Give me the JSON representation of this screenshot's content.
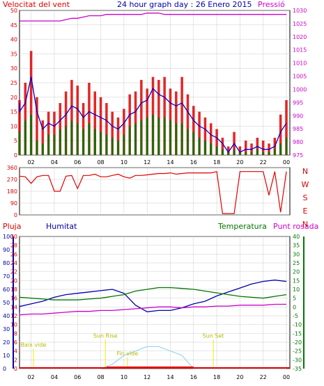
{
  "title": "24 hour graph day : 26 Enero 2015",
  "colors": {
    "wind": "#e00000",
    "gust": "#e00000",
    "avg_wind": "#0000cc",
    "temp_green": "#007700",
    "pressure": "#cc00cc",
    "humidity": "#0000aa",
    "rain": "#dd0000",
    "dew": "#cc00cc",
    "sun": "#eeee00",
    "uv": "#88ccee",
    "grid": "#cccccc",
    "frame": "#000000",
    "direction": "#e00000"
  },
  "chart_data": [
    {
      "type": "line",
      "name": "wind-pressure",
      "left_label": "Velocitat del vent",
      "right_label": "Pressió",
      "left_axis": {
        "ylim": [
          0,
          50
        ],
        "ticks": [
          "0",
          "5",
          "10",
          "15",
          "20",
          "25",
          "30",
          "35",
          "40",
          "45",
          "50"
        ]
      },
      "right_axis": {
        "ylim": [
          975,
          1030
        ],
        "ticks": [
          "975",
          "980",
          "985",
          "990",
          "995",
          "1000",
          "1005",
          "1010",
          "1015",
          "1020",
          "1025",
          "1030"
        ]
      },
      "x_ticks": [
        "02",
        "04",
        "06",
        "08",
        "10",
        "12",
        "14",
        "16",
        "18",
        "20",
        "22",
        "00"
      ],
      "x_hours": [
        0,
        0.5,
        1,
        1.5,
        2,
        2.5,
        3,
        3.5,
        4,
        4.5,
        5,
        5.5,
        6,
        6.5,
        7,
        7.5,
        8,
        8.5,
        9,
        9.5,
        10,
        10.5,
        11,
        11.5,
        12,
        12.5,
        13,
        13.5,
        14,
        14.5,
        15,
        15.5,
        16,
        16.5,
        17,
        17.5,
        18,
        18.5,
        19,
        19.5,
        20,
        20.5,
        21,
        21.5,
        22,
        22.5,
        23,
        23.5,
        24
      ],
      "series": [
        {
          "name": "gust",
          "values": [
            22,
            28,
            19,
            25,
            36,
            20,
            12,
            15,
            15,
            18,
            22,
            26,
            24,
            18,
            25,
            22,
            20,
            18,
            15,
            13,
            16,
            21,
            22,
            26,
            23,
            27,
            26,
            27,
            23,
            22,
            27,
            21,
            17,
            15,
            13,
            11,
            9,
            6,
            3,
            8,
            3,
            5,
            4,
            6,
            5,
            4,
            6,
            14,
            19
          ]
        },
        {
          "name": "wind",
          "values": [
            17,
            20,
            16,
            20,
            28,
            16,
            10,
            12,
            11,
            13,
            16,
            19,
            17,
            14,
            17,
            16,
            15,
            13,
            11,
            10,
            12,
            15,
            16,
            19,
            20,
            25,
            23,
            22,
            19,
            18,
            19,
            16,
            13,
            11,
            10,
            8,
            7,
            4,
            2,
            5,
            1,
            3,
            3,
            4,
            3,
            3,
            4,
            10,
            12
          ]
        },
        {
          "name": "avg_wind",
          "values": [
            16,
            18,
            15,
            18,
            27,
            15,
            9,
            11,
            10,
            12,
            14,
            17,
            16,
            13,
            15,
            14,
            13,
            12,
            10,
            9,
            11,
            14,
            15,
            18,
            19,
            23,
            21,
            20,
            18,
            17,
            18,
            15,
            12,
            10,
            9,
            7,
            6,
            4,
            1,
            4,
            1,
            2,
            2,
            3,
            2,
            2,
            3,
            8,
            11
          ]
        },
        {
          "name": "green",
          "values": [
            10,
            11,
            8,
            12,
            14,
            5,
            4,
            7,
            7,
            9,
            10,
            12,
            11,
            9,
            11,
            9,
            8,
            7,
            6,
            5,
            7,
            10,
            11,
            12,
            13,
            14,
            13,
            13,
            12,
            11,
            11,
            9,
            8,
            6,
            5,
            4,
            3,
            2,
            1,
            2,
            1,
            1,
            1,
            2,
            1,
            1,
            2,
            4,
            6
          ]
        },
        {
          "name": "pressure",
          "values": [
            1026,
            1026,
            1026,
            1026,
            1026,
            1026,
            1026,
            1026,
            1026,
            1026,
            1026.5,
            1027,
            1027,
            1027.5,
            1028,
            1028,
            1028,
            1028.5,
            1028.5,
            1028.5,
            1028.5,
            1028.5,
            1028.5,
            1028.5,
            1029,
            1029,
            1029,
            1028.5,
            1028.5,
            1028.5,
            1028.5,
            1028.5,
            1028.5,
            1028.5,
            1028.5,
            1028.5,
            1028.5,
            1028.5,
            1028.5,
            1028.5,
            1028.5,
            1028.5,
            1028.5,
            1028.5,
            1028.5,
            1028.5,
            1028.5,
            1028.5,
            1028.5
          ]
        }
      ]
    },
    {
      "type": "line",
      "name": "wind-direction",
      "left_axis": {
        "ylim": [
          0,
          360
        ],
        "ticks": [
          "0",
          "90",
          "180",
          "270",
          "360"
        ]
      },
      "right_labels": [
        "N",
        "W",
        "S",
        "E",
        "N"
      ],
      "x_hours": [
        0,
        0.5,
        1,
        1.5,
        2,
        2.5,
        3,
        3.5,
        4,
        4.5,
        5,
        5.5,
        6,
        6.5,
        7,
        7.5,
        8,
        8.5,
        9,
        9.5,
        10,
        10.5,
        11,
        11.5,
        12,
        12.5,
        13,
        13.5,
        14,
        14.5,
        15,
        15.5,
        16,
        16.5,
        17,
        17.5,
        18,
        18.5,
        19,
        19.5,
        20,
        20.5,
        21,
        21.5,
        22,
        22.5,
        23,
        23.5,
        24
      ],
      "values": [
        290,
        300,
        295,
        290,
        240,
        290,
        300,
        300,
        180,
        180,
        295,
        300,
        200,
        300,
        300,
        310,
        290,
        290,
        300,
        310,
        290,
        280,
        300,
        300,
        305,
        310,
        315,
        315,
        320,
        310,
        315,
        320,
        320,
        320,
        320,
        320,
        330,
        10,
        10,
        10,
        330,
        330,
        330,
        330,
        330,
        150,
        330,
        20,
        330
      ]
    },
    {
      "type": "line",
      "name": "temperature-humidity",
      "left_labels": [
        "Pluja",
        "Humitat"
      ],
      "right_labels": [
        "Temperatura",
        "Punt rosada"
      ],
      "humidity_axis": {
        "ylim": [
          0,
          100
        ],
        "ticks": [
          "0",
          "10",
          "20",
          "30",
          "40",
          "50",
          "60",
          "70",
          "80",
          "90",
          "100"
        ]
      },
      "rain_axis": {
        "ylim": [
          0,
          30
        ],
        "ticks": [
          "0",
          "2",
          "4",
          "6",
          "8",
          "10",
          "12",
          "14",
          "16",
          "18",
          "20",
          "22",
          "24",
          "26",
          "28",
          "30"
        ]
      },
      "temp_axis": {
        "ylim": [
          -35,
          40
        ],
        "ticks": [
          "-35",
          "-30",
          "-25",
          "-20",
          "-15",
          "-10",
          "-5",
          "0",
          "5",
          "10",
          "15",
          "20",
          "25",
          "30",
          "35",
          "40"
        ]
      },
      "x_ticks": [
        "02",
        "04",
        "06",
        "08",
        "10",
        "12",
        "14",
        "16",
        "18",
        "20",
        "22",
        "00"
      ],
      "x_hours": [
        0,
        1,
        2,
        3,
        4,
        5,
        6,
        7,
        8,
        9,
        10,
        11,
        12,
        13,
        14,
        15,
        16,
        17,
        18,
        19,
        20,
        21,
        22,
        23,
        24
      ],
      "series": [
        {
          "name": "humidity",
          "values": [
            43,
            47,
            49,
            51,
            54,
            56,
            57,
            58,
            59,
            60,
            57,
            48,
            43,
            44,
            44,
            46,
            49,
            51,
            55,
            58,
            61,
            64,
            66,
            67,
            66
          ]
        },
        {
          "name": "temperature",
          "values": [
            6,
            5.5,
            5,
            4.5,
            4,
            4,
            4,
            4.5,
            5,
            6,
            7,
            9,
            10,
            11,
            11,
            10.5,
            10,
            9,
            8,
            7,
            6,
            5.5,
            5,
            6,
            7
          ]
        },
        {
          "name": "dew_point",
          "values": [
            -5,
            -4.5,
            -4,
            -4,
            -3.5,
            -3,
            -2.5,
            -2.5,
            -2,
            -2,
            -1.5,
            -1,
            -0.5,
            0,
            0,
            -0.5,
            0,
            0,
            0.5,
            0.5,
            1,
            1,
            1,
            1.5,
            1.5
          ]
        },
        {
          "name": "solar",
          "values": [
            0,
            0,
            0,
            0,
            0,
            0,
            0,
            0,
            0,
            1,
            3,
            4,
            5,
            5,
            4,
            3,
            0,
            0,
            0,
            0,
            0,
            0,
            0,
            0,
            0
          ]
        }
      ],
      "annotations": [
        {
          "text": "Baix vide",
          "hour": 2.2,
          "level": 5
        },
        {
          "text": "Sun Rise",
          "hour": 8.4,
          "level": 7
        },
        {
          "text": "Fin vide",
          "hour": 10.3,
          "level": 3
        },
        {
          "text": "Sun Set",
          "hour": 17.7,
          "level": 7
        }
      ]
    }
  ]
}
